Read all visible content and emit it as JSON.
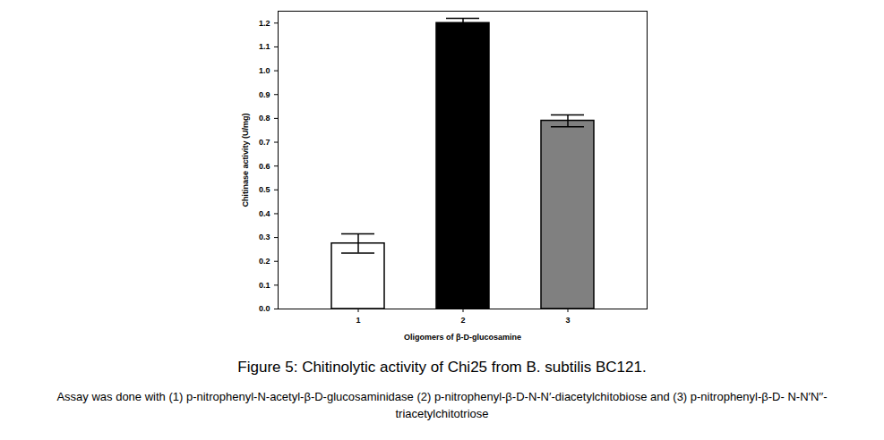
{
  "chart_data": {
    "type": "bar",
    "title": "Figure 5: Chitinolytic activity of Chi25 from B. subtilis BC121.",
    "caption": "Assay was done with (1) p-nitrophenyl-N-acetyl-β-D-glucosaminidase  (2) p-nitrophenyl-β-D-N-N′-diacetylchitobiose  and (3) p-nitrophenyl-β-D- N-N′N′′-triacetylchitotriose",
    "x_label": "Oligomers of β-D-glucosamine",
    "y_label": "Chitinase activity (U/mg)",
    "categories": [
      "1",
      "2",
      "3"
    ],
    "values": [
      0.275,
      1.2,
      0.79
    ],
    "errors": [
      0.04,
      0.02,
      0.025
    ],
    "colors": [
      "#ffffff",
      "#000000",
      "#808080"
    ],
    "ylim": [
      0,
      1.25
    ],
    "yticks": [
      {
        "value": 0,
        "label": "0.0"
      },
      0.1,
      0.2,
      0.3,
      0.4,
      0.5,
      0.6,
      0.7,
      0.8,
      0.9,
      {
        "value": 1,
        "label": "1.0"
      },
      1.1,
      1.2
    ],
    "grid": false
  }
}
